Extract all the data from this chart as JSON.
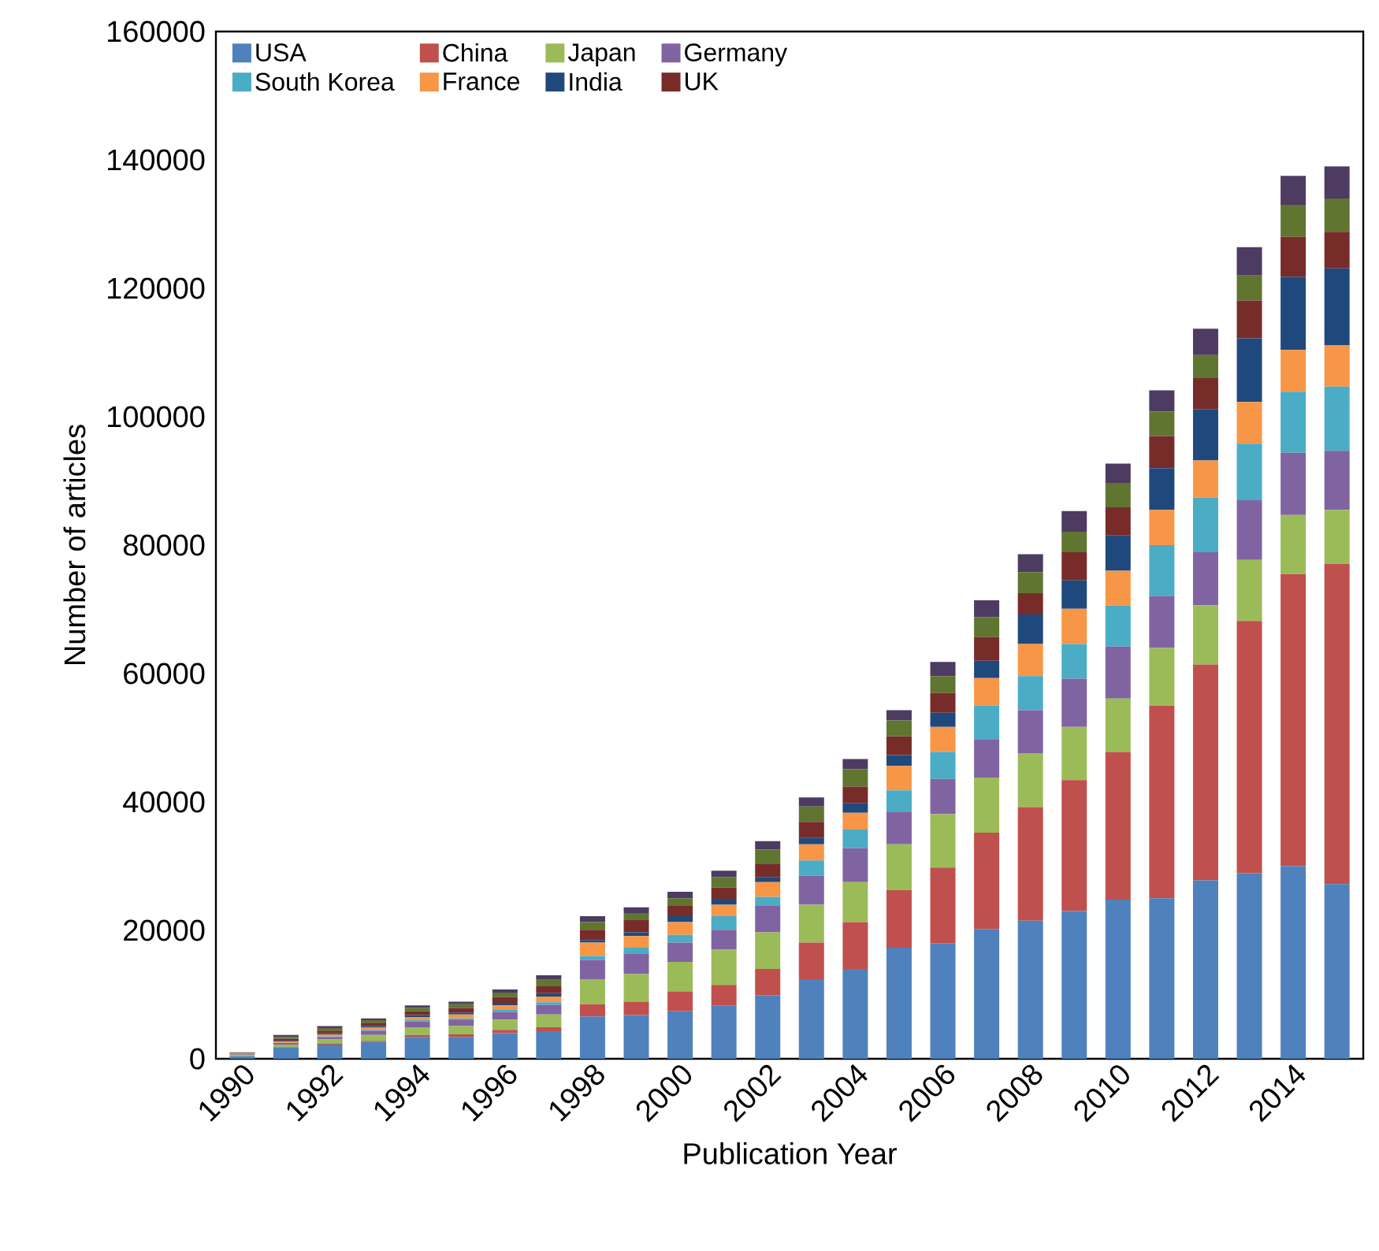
{
  "chart_data": {
    "type": "bar",
    "stacked": true,
    "xlabel": "Publication Year",
    "ylabel": "Number of articles",
    "categories": [
      "1990",
      null,
      "1992",
      null,
      "1994",
      null,
      "1996",
      null,
      "1998",
      null,
      "2000",
      null,
      "2002",
      null,
      "2004",
      null,
      "2006",
      null,
      "2008",
      null,
      "2010",
      null,
      "2012",
      null,
      "2014",
      null
    ],
    "ylim": [
      0,
      160000
    ],
    "yticks": [
      0,
      20000,
      40000,
      60000,
      80000,
      100000,
      120000,
      140000,
      160000
    ],
    "legend": "top",
    "grid": false,
    "series": [
      {
        "name": "USA",
        "color": "#4f81bd",
        "values": [
          400,
          1800,
          2200,
          2600,
          3400,
          3400,
          4000,
          4300,
          6600,
          6800,
          7400,
          8300,
          9900,
          12400,
          14000,
          17300,
          18000,
          20200,
          21500,
          23000,
          24800,
          25000,
          27800,
          28900,
          30000,
          27200
        ]
      },
      {
        "name": "China",
        "color": "#c0504d",
        "values": [
          null,
          null,
          200,
          200,
          300,
          400,
          500,
          600,
          1900,
          2100,
          3100,
          3200,
          4100,
          5700,
          7300,
          9000,
          11800,
          15000,
          17700,
          20400,
          23000,
          30000,
          33600,
          39300,
          45500,
          49900
        ]
      },
      {
        "name": "Japan",
        "color": "#9bbb59",
        "values": [
          200,
          400,
          600,
          900,
          1200,
          1300,
          1600,
          2000,
          3900,
          4300,
          4600,
          5500,
          5700,
          5900,
          6200,
          7100,
          8300,
          8600,
          8400,
          8300,
          8300,
          9000,
          9200,
          9500,
          9200,
          8400
        ]
      },
      {
        "name": "Germany",
        "color": "#8064a2",
        "values": [
          100,
          300,
          400,
          700,
          900,
          1000,
          1200,
          1500,
          3000,
          3200,
          3000,
          3100,
          4100,
          4500,
          5300,
          5100,
          5500,
          6000,
          6700,
          7500,
          8100,
          8100,
          8300,
          9300,
          9700,
          9200
        ]
      },
      {
        "name": "South Korea",
        "color": "#4bacc6",
        "values": [
          null,
          null,
          100,
          100,
          200,
          200,
          300,
          400,
          600,
          900,
          1200,
          2100,
          1400,
          2400,
          2900,
          3300,
          4200,
          5200,
          5300,
          5400,
          6400,
          7900,
          8500,
          8800,
          9500,
          10000
        ]
      },
      {
        "name": "France",
        "color": "#f79646",
        "values": [
          100,
          200,
          300,
          400,
          500,
          600,
          700,
          900,
          2100,
          1800,
          2000,
          1800,
          2300,
          2500,
          2600,
          3800,
          3900,
          4300,
          5000,
          5500,
          5400,
          5500,
          5800,
          6500,
          6500,
          6400
        ]
      },
      {
        "name": "India",
        "color": "#1f497d",
        "values": [
          null,
          100,
          200,
          200,
          300,
          300,
          400,
          500,
          400,
          600,
          900,
          900,
          800,
          1000,
          1500,
          1700,
          2200,
          2700,
          4600,
          4400,
          5500,
          6500,
          8000,
          9900,
          11400,
          12000
        ]
      },
      {
        "name": "UK",
        "color": "#772c2a",
        "values": [
          100,
          300,
          400,
          500,
          600,
          700,
          900,
          1100,
          1600,
          1900,
          1600,
          1800,
          2000,
          2500,
          2600,
          2900,
          3100,
          3700,
          3300,
          4400,
          4400,
          5000,
          4800,
          5900,
          6200,
          5700
        ]
      },
      {
        "color": "#5f7530",
        "values": [
          100,
          300,
          400,
          400,
          500,
          600,
          700,
          1000,
          1200,
          1100,
          1200,
          1600,
          2300,
          2400,
          2700,
          2500,
          2600,
          3100,
          3300,
          3200,
          3800,
          3800,
          3600,
          3900,
          5000,
          5200
        ]
      },
      {
        "color": "#4d3b62",
        "values": [
          null,
          300,
          300,
          300,
          400,
          400,
          500,
          700,
          900,
          900,
          1000,
          1000,
          1300,
          1400,
          1600,
          1600,
          2200,
          2600,
          2800,
          3200,
          3000,
          3300,
          4100,
          4400,
          4500,
          5000
        ]
      }
    ]
  }
}
